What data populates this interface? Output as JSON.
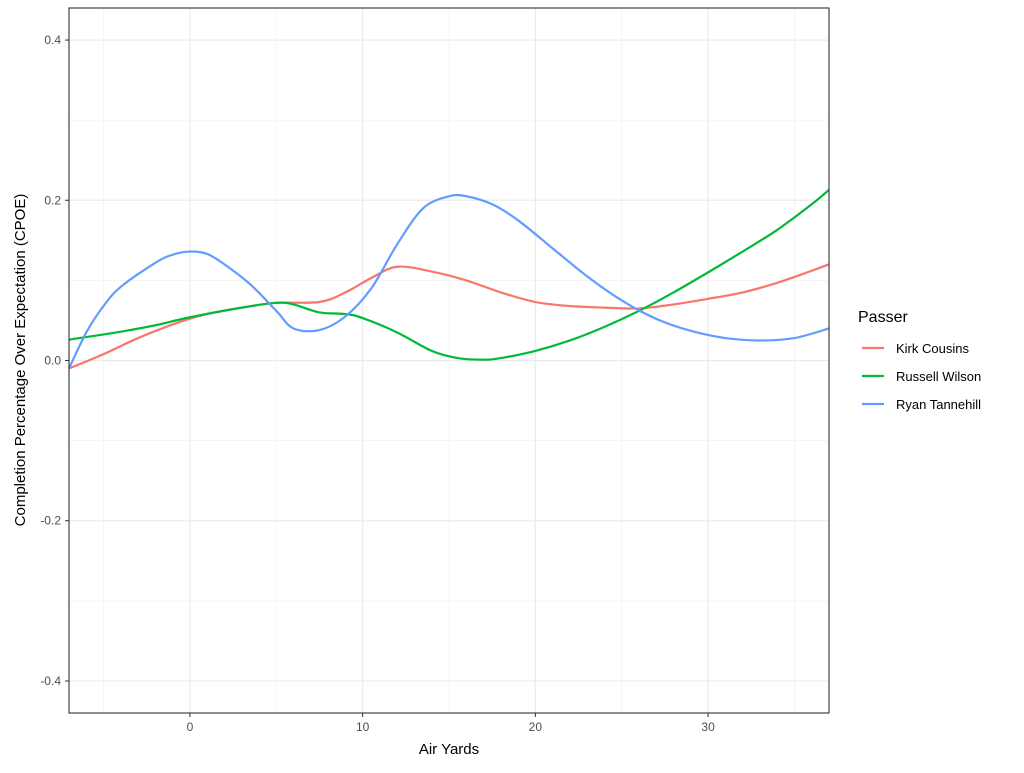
{
  "chart_data": {
    "type": "line",
    "title": "",
    "xlabel": "Air Yards",
    "ylabel": "Completion Percentage Over Expectation (CPOE)",
    "xlim": [
      -7,
      37
    ],
    "ylim": [
      -0.44,
      0.44
    ],
    "x_ticks": [
      0,
      10,
      20,
      30
    ],
    "x_tick_labels": [
      "0",
      "10",
      "20",
      "30"
    ],
    "y_ticks": [
      -0.4,
      -0.2,
      0,
      0.2,
      0.4
    ],
    "y_tick_labels": [
      "-0.4",
      "-0.2",
      "0.0",
      "0.2",
      "0.4"
    ],
    "grid": true,
    "legend": {
      "title": "Passer",
      "placement": "right"
    },
    "series": [
      {
        "name": "Kirk Cousins",
        "color": "#F8766D",
        "points": [
          [
            -7,
            -0.01
          ],
          [
            -5,
            0.008
          ],
          [
            -3,
            0.028
          ],
          [
            -1,
            0.045
          ],
          [
            0,
            0.052
          ],
          [
            1,
            0.058
          ],
          [
            3,
            0.066
          ],
          [
            5,
            0.072
          ],
          [
            7.5,
            0.073
          ],
          [
            9,
            0.085
          ],
          [
            10.5,
            0.103
          ],
          [
            12,
            0.117
          ],
          [
            14,
            0.111
          ],
          [
            16,
            0.1
          ],
          [
            18,
            0.085
          ],
          [
            20,
            0.073
          ],
          [
            22,
            0.068
          ],
          [
            24,
            0.066
          ],
          [
            26,
            0.065
          ],
          [
            28,
            0.07
          ],
          [
            30,
            0.077
          ],
          [
            32,
            0.085
          ],
          [
            34,
            0.097
          ],
          [
            36,
            0.112
          ],
          [
            37,
            0.12
          ]
        ]
      },
      {
        "name": "Russell Wilson",
        "color": "#00BA38",
        "points": [
          [
            -7,
            0.026
          ],
          [
            -4,
            0.036
          ],
          [
            -2,
            0.044
          ],
          [
            0,
            0.054
          ],
          [
            3,
            0.066
          ],
          [
            5,
            0.072
          ],
          [
            6,
            0.07
          ],
          [
            7.5,
            0.06
          ],
          [
            9,
            0.058
          ],
          [
            10,
            0.053
          ],
          [
            12,
            0.035
          ],
          [
            14,
            0.012
          ],
          [
            15.5,
            0.003
          ],
          [
            17,
            0.001
          ],
          [
            18,
            0.003
          ],
          [
            20,
            0.012
          ],
          [
            22,
            0.025
          ],
          [
            24,
            0.042
          ],
          [
            26,
            0.062
          ],
          [
            28,
            0.085
          ],
          [
            30,
            0.11
          ],
          [
            32,
            0.136
          ],
          [
            34,
            0.163
          ],
          [
            36,
            0.195
          ],
          [
            37,
            0.213
          ]
        ]
      },
      {
        "name": "Ryan Tannehill",
        "color": "#619CFF",
        "points": [
          [
            -7,
            -0.01
          ],
          [
            -6,
            0.035
          ],
          [
            -5,
            0.068
          ],
          [
            -4,
            0.092
          ],
          [
            -2,
            0.122
          ],
          [
            -1,
            0.132
          ],
          [
            0,
            0.136
          ],
          [
            1,
            0.133
          ],
          [
            2,
            0.12
          ],
          [
            3.5,
            0.095
          ],
          [
            5,
            0.062
          ],
          [
            6,
            0.04
          ],
          [
            7.5,
            0.038
          ],
          [
            9,
            0.055
          ],
          [
            10.5,
            0.09
          ],
          [
            12,
            0.145
          ],
          [
            13.5,
            0.19
          ],
          [
            15,
            0.205
          ],
          [
            16,
            0.205
          ],
          [
            17.5,
            0.195
          ],
          [
            19,
            0.175
          ],
          [
            21,
            0.14
          ],
          [
            23,
            0.105
          ],
          [
            25,
            0.075
          ],
          [
            27,
            0.052
          ],
          [
            29,
            0.037
          ],
          [
            31,
            0.028
          ],
          [
            33,
            0.025
          ],
          [
            35,
            0.028
          ],
          [
            37,
            0.04
          ]
        ]
      }
    ]
  }
}
